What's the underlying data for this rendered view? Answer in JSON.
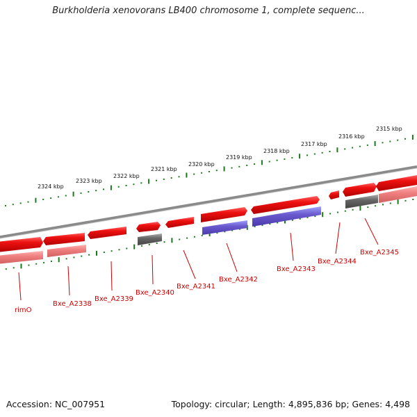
{
  "title": "Burkholderia xenovorans LB400 chromosome 1, complete sequenc...",
  "footer": {
    "accession": "Accession: NC_007951",
    "summary": "Topology: circular; Length: 4,895,836 bp; Genes: 4,498"
  },
  "ticks": [
    "2324 kbp",
    "2323 kbp",
    "2322 kbp",
    "2321 kbp",
    "2320 kbp",
    "2319 kbp",
    "2318 kbp",
    "2317 kbp",
    "2316 kbp",
    "2315 kbp"
  ],
  "genes": [
    "rimO",
    "Bxe_A2338",
    "Bxe_A2339",
    "Bxe_A2340",
    "Bxe_A2341",
    "Bxe_A2342",
    "Bxe_A2343",
    "Bxe_A2344",
    "Bxe_A2345"
  ],
  "colors": {
    "forward": "#ee1111",
    "reverse": "#f08080",
    "rna": "#666666",
    "other": "#6a5acd",
    "backbone": "#888888",
    "scale": "#1a7a1a",
    "label": "#cc0000"
  }
}
